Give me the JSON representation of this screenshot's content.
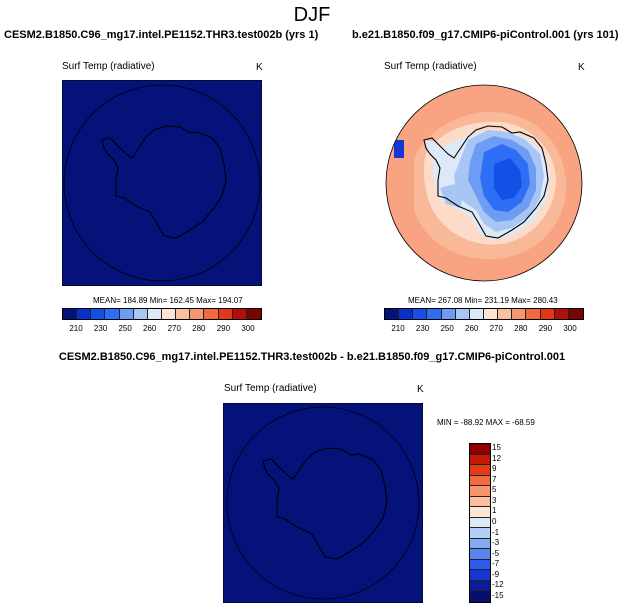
{
  "page": {
    "title": "DJF"
  },
  "panels": [
    {
      "id": "test",
      "title": "CESM2.B1850.C96_mg17.intel.PE1152.THR3.test002b (yrs 1)",
      "variable": "Surf Temp (radiative)",
      "unit": "K",
      "stats": "MEAN= 184.89  Min= 162.45  Max= 194.07",
      "fill_color": "#05127a"
    },
    {
      "id": "control",
      "title": "b.e21.B1850.f09_g17.CMIP6-piControl.001 (yrs 101)",
      "variable": "Surf Temp (radiative)",
      "unit": "K",
      "stats": "MEAN= 267.08  Min= 231.19  Max= 280.43"
    },
    {
      "id": "diff",
      "title": "CESM2.B1850.C96_mg17.intel.PE1152.THR3.test002b - b.e21.B1850.f09_g17.CMIP6-piControl.001",
      "variable": "Surf Temp (radiative)",
      "unit": "K",
      "stats": "MIN = -88.92  MAX = -68.59",
      "fill_color": "#05127a"
    }
  ],
  "abs_colorbar": {
    "colors": [
      "#06127c",
      "#0a2ec8",
      "#1550e6",
      "#2e6ef5",
      "#6e9cf4",
      "#a8c6f4",
      "#dde8f8",
      "#fde4d4",
      "#f8c0a0",
      "#f59870",
      "#f16a40",
      "#e03818",
      "#b01008",
      "#7a0404"
    ],
    "ticks": [
      "210",
      "230",
      "250",
      "260",
      "270",
      "280",
      "290",
      "300"
    ]
  },
  "diff_colorbar": {
    "colors": [
      "#8a0000",
      "#c41808",
      "#e63a16",
      "#f26a3c",
      "#f7966c",
      "#fbbfa0",
      "#fde6d6",
      "#dceaf8",
      "#b4cef6",
      "#85aaf4",
      "#5684ee",
      "#2e5ce8",
      "#1436d2",
      "#081c9c",
      "#050f6e"
    ],
    "ticks": [
      "15",
      "12",
      "9",
      "7",
      "5",
      "3",
      "1",
      "0",
      "-1",
      "-3",
      "-5",
      "-7",
      "-9",
      "-12",
      "-15"
    ]
  }
}
